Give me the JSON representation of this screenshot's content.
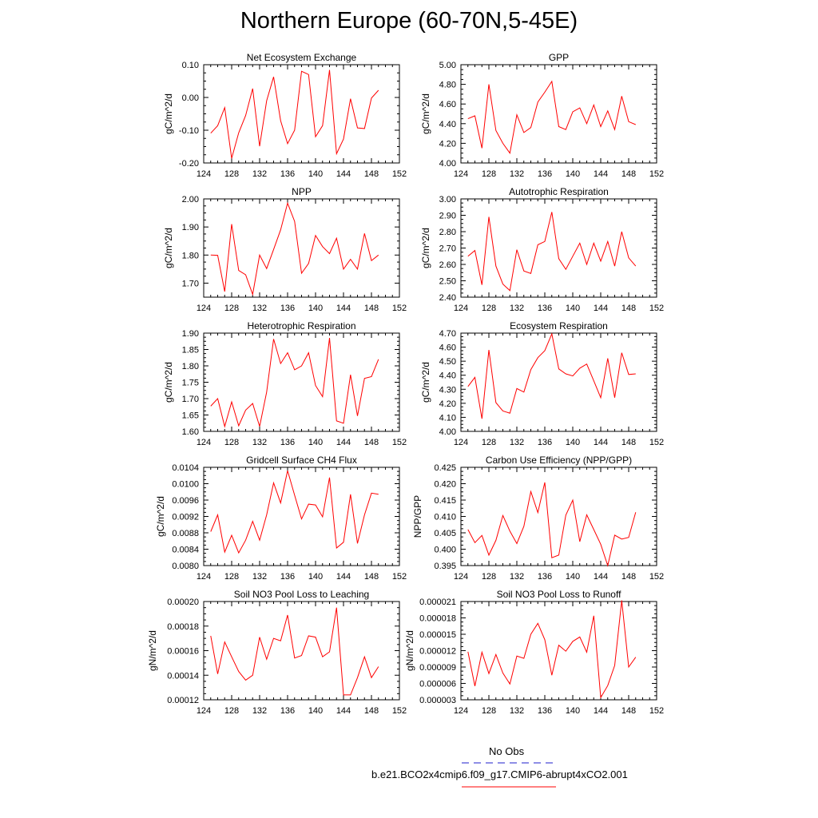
{
  "page_title": "Northern Europe (60-70N,5-45E)",
  "line_color": "#ff0000",
  "legend": {
    "entries": [
      {
        "label": "No Obs",
        "color": "#4b4bd6",
        "dash": true
      },
      {
        "label": "b.e21.BCO2x4cmip6.f09_g17.CMIP6-abrupt4xCO2.001",
        "color": "#ff0000",
        "dash": false
      }
    ]
  },
  "chart_data": [
    {
      "type": "line",
      "title": "Net Ecosystem Exchange",
      "xlabel": "",
      "ylabel": "gC/m^2/d",
      "xlim": [
        124,
        152
      ],
      "ylim": [
        -0.2,
        0.1
      ],
      "yticks": [
        "0.10",
        "0.00",
        "-0.10",
        "-0.20"
      ],
      "ytick_values": [
        0.1,
        0.0,
        -0.1,
        -0.2
      ],
      "xticks": [
        "124",
        "128",
        "132",
        "136",
        "140",
        "144",
        "148",
        "152"
      ],
      "x": [
        125,
        126,
        127,
        128,
        129,
        130,
        131,
        132,
        133,
        134,
        135,
        136,
        137,
        138,
        139,
        140,
        141,
        142,
        143,
        144,
        145,
        146,
        147,
        148,
        149
      ],
      "y": [
        -0.109,
        -0.086,
        -0.031,
        -0.186,
        -0.108,
        -0.055,
        0.027,
        -0.149,
        -0.01,
        0.063,
        -0.071,
        -0.141,
        -0.1,
        0.08,
        0.07,
        -0.12,
        -0.086,
        0.084,
        -0.172,
        -0.127,
        -0.004,
        -0.093,
        -0.095,
        -0.002,
        0.022
      ]
    },
    {
      "type": "line",
      "title": "GPP",
      "xlabel": "",
      "ylabel": "gC/m^2/d",
      "xlim": [
        124,
        152
      ],
      "ylim": [
        4.0,
        5.0
      ],
      "yticks": [
        "5.00",
        "4.80",
        "4.60",
        "4.40",
        "4.20",
        "4.00"
      ],
      "ytick_values": [
        5.0,
        4.8,
        4.6,
        4.4,
        4.2,
        4.0
      ],
      "xticks": [
        "124",
        "128",
        "132",
        "136",
        "140",
        "144",
        "148",
        "152"
      ],
      "x": [
        125,
        126,
        127,
        128,
        129,
        130,
        131,
        132,
        133,
        134,
        135,
        136,
        137,
        138,
        139,
        140,
        141,
        142,
        143,
        144,
        145,
        146,
        147,
        148,
        149
      ],
      "y": [
        4.45,
        4.48,
        4.15,
        4.8,
        4.33,
        4.2,
        4.1,
        4.49,
        4.31,
        4.36,
        4.62,
        4.72,
        4.83,
        4.37,
        4.34,
        4.52,
        4.56,
        4.4,
        4.59,
        4.37,
        4.53,
        4.34,
        4.68,
        4.42,
        4.39
      ]
    },
    {
      "type": "line",
      "title": "NPP",
      "xlabel": "",
      "ylabel": "gC/m^2/d",
      "xlim": [
        124,
        152
      ],
      "ylim": [
        1.65,
        2.0
      ],
      "yticks": [
        "2.00",
        "1.90",
        "1.80",
        "1.70"
      ],
      "ytick_values": [
        2.0,
        1.9,
        1.8,
        1.7
      ],
      "xticks": [
        "124",
        "128",
        "132",
        "136",
        "140",
        "144",
        "148",
        "152"
      ],
      "x": [
        125,
        126,
        127,
        128,
        129,
        130,
        131,
        132,
        133,
        134,
        135,
        136,
        137,
        138,
        139,
        140,
        141,
        142,
        143,
        144,
        145,
        146,
        147,
        148,
        149
      ],
      "y": [
        1.8,
        1.799,
        1.67,
        1.91,
        1.745,
        1.73,
        1.66,
        1.8,
        1.752,
        1.82,
        1.89,
        1.985,
        1.92,
        1.735,
        1.77,
        1.87,
        1.83,
        1.805,
        1.86,
        1.75,
        1.785,
        1.75,
        1.877,
        1.78,
        1.8
      ]
    },
    {
      "type": "line",
      "title": "Autotrophic Respiration",
      "xlabel": "",
      "ylabel": "gC/m^2/d",
      "xlim": [
        124,
        152
      ],
      "ylim": [
        2.4,
        3.0
      ],
      "yticks": [
        "3.00",
        "2.90",
        "2.80",
        "2.70",
        "2.60",
        "2.50",
        "2.40"
      ],
      "ytick_values": [
        3.0,
        2.9,
        2.8,
        2.7,
        2.6,
        2.5,
        2.4
      ],
      "xticks": [
        "124",
        "128",
        "132",
        "136",
        "140",
        "144",
        "148",
        "152"
      ],
      "x": [
        125,
        126,
        127,
        128,
        129,
        130,
        131,
        132,
        133,
        134,
        135,
        136,
        137,
        138,
        139,
        140,
        141,
        142,
        143,
        144,
        145,
        146,
        147,
        148,
        149
      ],
      "y": [
        2.65,
        2.685,
        2.475,
        2.89,
        2.59,
        2.48,
        2.44,
        2.69,
        2.56,
        2.545,
        2.72,
        2.74,
        2.92,
        2.635,
        2.57,
        2.65,
        2.73,
        2.6,
        2.73,
        2.62,
        2.74,
        2.59,
        2.8,
        2.64,
        2.59
      ]
    },
    {
      "type": "line",
      "title": "Heterotrophic Respiration",
      "xlabel": "",
      "ylabel": "gC/m^2/d",
      "xlim": [
        124,
        152
      ],
      "ylim": [
        1.6,
        1.9
      ],
      "yticks": [
        "1.90",
        "1.85",
        "1.80",
        "1.75",
        "1.70",
        "1.65",
        "1.60"
      ],
      "ytick_values": [
        1.9,
        1.85,
        1.8,
        1.75,
        1.7,
        1.65,
        1.6
      ],
      "xticks": [
        "124",
        "128",
        "132",
        "136",
        "140",
        "144",
        "148",
        "152"
      ],
      "x": [
        125,
        126,
        127,
        128,
        129,
        130,
        131,
        132,
        133,
        134,
        135,
        136,
        137,
        138,
        139,
        140,
        141,
        142,
        143,
        144,
        145,
        146,
        147,
        148,
        149
      ],
      "y": [
        1.677,
        1.7,
        1.615,
        1.69,
        1.617,
        1.665,
        1.685,
        1.615,
        1.72,
        1.882,
        1.807,
        1.84,
        1.788,
        1.8,
        1.84,
        1.74,
        1.706,
        1.885,
        1.632,
        1.625,
        1.773,
        1.647,
        1.762,
        1.767,
        1.82
      ]
    },
    {
      "type": "line",
      "title": "Ecosystem Respiration",
      "xlabel": "",
      "ylabel": "gC/m^2/d",
      "xlim": [
        124,
        152
      ],
      "ylim": [
        4.0,
        4.7
      ],
      "yticks": [
        "4.70",
        "4.60",
        "4.50",
        "4.40",
        "4.30",
        "4.20",
        "4.10",
        "4.00"
      ],
      "ytick_values": [
        4.7,
        4.6,
        4.5,
        4.4,
        4.3,
        4.2,
        4.1,
        4.0
      ],
      "xticks": [
        "124",
        "128",
        "132",
        "136",
        "140",
        "144",
        "148",
        "152"
      ],
      "x": [
        125,
        126,
        127,
        128,
        129,
        130,
        131,
        132,
        133,
        134,
        135,
        136,
        137,
        138,
        139,
        140,
        141,
        142,
        143,
        144,
        145,
        146,
        147,
        148,
        149
      ],
      "y": [
        4.32,
        4.385,
        4.09,
        4.58,
        4.205,
        4.145,
        4.13,
        4.305,
        4.28,
        4.44,
        4.525,
        4.575,
        4.695,
        4.445,
        4.41,
        4.395,
        4.45,
        4.48,
        4.36,
        4.24,
        4.52,
        4.24,
        4.56,
        4.405,
        4.41
      ]
    },
    {
      "type": "line",
      "title": "Gridcell Surface CH4 Flux",
      "xlabel": "",
      "ylabel": "gC/m^2/d",
      "xlim": [
        124,
        152
      ],
      "ylim": [
        0.008,
        0.0104
      ],
      "yticks": [
        "0.0104",
        "0.0100",
        "0.0096",
        "0.0092",
        "0.0088",
        "0.0084",
        "0.0080"
      ],
      "ytick_values": [
        0.0104,
        0.01,
        0.0096,
        0.0092,
        0.0088,
        0.0084,
        0.008
      ],
      "xticks": [
        "124",
        "128",
        "132",
        "136",
        "140",
        "144",
        "148",
        "152"
      ],
      "x": [
        125,
        126,
        127,
        128,
        129,
        130,
        131,
        132,
        133,
        134,
        135,
        136,
        137,
        138,
        139,
        140,
        141,
        142,
        143,
        144,
        145,
        146,
        147,
        148,
        149
      ],
      "y": [
        0.00883,
        0.00924,
        0.00833,
        0.00874,
        0.00831,
        0.00862,
        0.00908,
        0.00862,
        0.00924,
        0.01002,
        0.00953,
        0.01032,
        0.00972,
        0.00914,
        0.0095,
        0.00948,
        0.00919,
        0.01015,
        0.00843,
        0.00857,
        0.00974,
        0.00854,
        0.00924,
        0.00977,
        0.00974
      ]
    },
    {
      "type": "line",
      "title": "Carbon Use Efficiency (NPP/GPP)",
      "xlabel": "",
      "ylabel": "NPP/GPP",
      "xlim": [
        124,
        152
      ],
      "ylim": [
        0.395,
        0.425
      ],
      "yticks": [
        "0.425",
        "0.420",
        "0.415",
        "0.410",
        "0.405",
        "0.400",
        "0.395"
      ],
      "ytick_values": [
        0.425,
        0.42,
        0.415,
        0.41,
        0.405,
        0.4,
        0.395
      ],
      "xticks": [
        "124",
        "128",
        "132",
        "136",
        "140",
        "144",
        "148",
        "152"
      ],
      "x": [
        125,
        126,
        127,
        128,
        129,
        130,
        131,
        132,
        133,
        134,
        135,
        136,
        137,
        138,
        139,
        140,
        141,
        142,
        143,
        144,
        145,
        146,
        147,
        148,
        149
      ],
      "y": [
        0.406,
        0.402,
        0.4042,
        0.3982,
        0.4027,
        0.4103,
        0.4055,
        0.4017,
        0.407,
        0.4176,
        0.4112,
        0.4204,
        0.3974,
        0.3982,
        0.4104,
        0.415,
        0.4023,
        0.4105,
        0.406,
        0.4015,
        0.395,
        0.4043,
        0.4031,
        0.4036,
        0.4113
      ]
    },
    {
      "type": "line",
      "title": "Soil NO3 Pool Loss to Leaching",
      "xlabel": "",
      "ylabel": "gN/m^2/d",
      "xlim": [
        124,
        152
      ],
      "ylim": [
        0.00012,
        0.0002
      ],
      "yticks": [
        "0.00020",
        "0.00018",
        "0.00016",
        "0.00014",
        "0.00012"
      ],
      "ytick_values": [
        0.0002,
        0.00018,
        0.00016,
        0.00014,
        0.00012
      ],
      "xticks": [
        "124",
        "128",
        "132",
        "136",
        "140",
        "144",
        "148",
        "152"
      ],
      "x": [
        125,
        126,
        127,
        128,
        129,
        130,
        131,
        132,
        133,
        134,
        135,
        136,
        137,
        138,
        139,
        140,
        141,
        142,
        143,
        144,
        145,
        146,
        147,
        148,
        149
      ],
      "y": [
        0.000172,
        0.000141,
        0.000167,
        0.000155,
        0.000143,
        0.000136,
        0.00014,
        0.000171,
        0.000153,
        0.00017,
        0.000168,
        0.000189,
        0.000154,
        0.000156,
        0.000172,
        0.000171,
        0.000155,
        0.000159,
        0.000195,
        0.000124,
        0.000124,
        0.000138,
        0.000155,
        0.000138,
        0.000147
      ]
    },
    {
      "type": "line",
      "title": "Soil NO3 Pool Loss to Runoff",
      "xlabel": "",
      "ylabel": "gN/m^2/d",
      "xlim": [
        124,
        152
      ],
      "ylim": [
        3e-06,
        2.1e-05
      ],
      "yticks": [
        "0.000021",
        "0.000018",
        "0.000015",
        "0.000012",
        "0.000009",
        "0.000006",
        "0.000003"
      ],
      "ytick_values": [
        2.1e-05,
        1.8e-05,
        1.5e-05,
        1.2e-05,
        9e-06,
        6e-06,
        3e-06
      ],
      "xticks": [
        "124",
        "128",
        "132",
        "136",
        "140",
        "144",
        "148",
        "152"
      ],
      "x": [
        125,
        126,
        127,
        128,
        129,
        130,
        131,
        132,
        133,
        134,
        135,
        136,
        137,
        138,
        139,
        140,
        141,
        142,
        143,
        144,
        145,
        146,
        147,
        148,
        149
      ],
      "y": [
        1.18e-05,
        5.5e-06,
        1.17e-05,
        7.8e-06,
        1.13e-05,
        7.9e-06,
        5.9e-06,
        1.1e-05,
        1.06e-05,
        1.5e-05,
        1.7e-05,
        1.4e-05,
        7.5e-06,
        1.3e-05,
        1.19e-05,
        1.37e-05,
        1.45e-05,
        1.17e-05,
        1.84e-05,
        3.4e-06,
        5.6e-06,
        9.3e-06,
        2.12e-05,
        9e-06,
        1.08e-05
      ]
    }
  ]
}
